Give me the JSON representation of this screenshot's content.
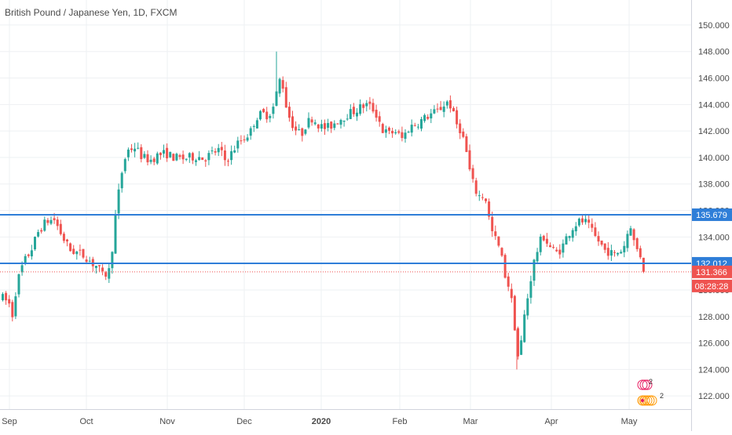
{
  "chart_title": "British Pound / Japanese Yen, 1D, FXCM",
  "colors": {
    "up": "#26a69a",
    "down": "#ef5350",
    "hline": "#2962ff",
    "line_blue": "#2f7ed8",
    "grid": "#eef0f3",
    "axis_text": "#4a4a4a",
    "background": "#ffffff"
  },
  "price_labels": {
    "upper_line": "135.679",
    "lower_line": "132.012",
    "last_price": "131.366",
    "countdown": "08:28:28"
  },
  "event_markers": {
    "upper_count": "2",
    "lower_count": "2"
  },
  "chart_data": {
    "type": "candlestick",
    "x_axis_labels": [
      "Sep",
      "Oct",
      "Nov",
      "Dec",
      "2020",
      "Feb",
      "Mar",
      "Apr",
      "May"
    ],
    "y_axis_ticks": [
      "122.000",
      "124.000",
      "126.000",
      "128.000",
      "130.000",
      "132.000",
      "134.000",
      "136.000",
      "138.000",
      "140.000",
      "142.000",
      "144.000",
      "146.000",
      "148.000",
      "150.000"
    ],
    "ylim": [
      121.3,
      151.0
    ],
    "grid": true,
    "horizontal_lines": [
      135.679,
      132.012
    ],
    "last_price": 131.366,
    "path": [
      [
        0,
        129.5
      ],
      [
        10,
        129.0
      ],
      [
        14,
        128.0
      ],
      [
        20,
        130.5
      ],
      [
        28,
        132.0
      ],
      [
        38,
        133.0
      ],
      [
        48,
        134.5
      ],
      [
        58,
        135.2
      ],
      [
        68,
        135.3
      ],
      [
        78,
        134.0
      ],
      [
        88,
        133.0
      ],
      [
        98,
        132.8
      ],
      [
        108,
        132.5
      ],
      [
        116,
        132.0
      ],
      [
        122,
        131.8
      ],
      [
        130,
        131.0
      ],
      [
        138,
        131.5
      ],
      [
        142,
        133.5
      ],
      [
        146,
        135.8
      ],
      [
        150,
        137.5
      ],
      [
        154,
        139.0
      ],
      [
        160,
        140.5
      ],
      [
        170,
        140.8
      ],
      [
        180,
        140.0
      ],
      [
        190,
        139.8
      ],
      [
        200,
        140.2
      ],
      [
        210,
        140.3
      ],
      [
        220,
        140.0
      ],
      [
        230,
        139.9
      ],
      [
        240,
        140.0
      ],
      [
        250,
        140.1
      ],
      [
        258,
        139.9
      ],
      [
        268,
        140.3
      ],
      [
        278,
        140.6
      ],
      [
        285,
        139.8
      ],
      [
        292,
        140.2
      ],
      [
        300,
        141.0
      ],
      [
        310,
        141.5
      ],
      [
        318,
        142.0
      ],
      [
        324,
        143.0
      ],
      [
        332,
        143.3
      ],
      [
        340,
        143.2
      ],
      [
        346,
        143.7
      ],
      [
        352,
        145.2
      ],
      [
        356,
        146.2
      ],
      [
        360,
        145.0
      ],
      [
        364,
        143.5
      ],
      [
        370,
        142.6
      ],
      [
        376,
        142.0
      ],
      [
        382,
        141.7
      ],
      [
        388,
        142.5
      ],
      [
        396,
        143.0
      ],
      [
        404,
        142.5
      ],
      [
        410,
        142.2
      ],
      [
        418,
        142.3
      ],
      [
        426,
        142.7
      ],
      [
        434,
        143.0
      ],
      [
        442,
        143.3
      ],
      [
        450,
        143.5
      ],
      [
        458,
        143.8
      ],
      [
        466,
        144.0
      ],
      [
        474,
        143.6
      ],
      [
        480,
        143.0
      ],
      [
        486,
        142.0
      ],
      [
        494,
        141.8
      ],
      [
        502,
        142.0
      ],
      [
        510,
        141.4
      ],
      [
        520,
        142.3
      ],
      [
        530,
        142.6
      ],
      [
        540,
        143.0
      ],
      [
        548,
        143.3
      ],
      [
        556,
        143.5
      ],
      [
        564,
        144.0
      ],
      [
        570,
        144.3
      ],
      [
        574,
        143.5
      ],
      [
        580,
        142.5
      ],
      [
        586,
        142.0
      ],
      [
        592,
        140.5
      ],
      [
        598,
        138.5
      ],
      [
        604,
        137.5
      ],
      [
        610,
        137.0
      ],
      [
        616,
        137.2
      ],
      [
        620,
        135.8
      ],
      [
        624,
        134.5
      ],
      [
        628,
        134.0
      ],
      [
        632,
        133.5
      ],
      [
        636,
        132.8
      ],
      [
        642,
        131.0
      ],
      [
        648,
        130.0
      ],
      [
        654,
        127.2
      ],
      [
        658,
        125.0
      ],
      [
        662,
        126.0
      ],
      [
        666,
        128.0
      ],
      [
        672,
        130.0
      ],
      [
        676,
        131.5
      ],
      [
        680,
        132.5
      ],
      [
        686,
        133.6
      ],
      [
        690,
        134.1
      ],
      [
        696,
        133.5
      ],
      [
        702,
        133.0
      ],
      [
        708,
        132.8
      ],
      [
        714,
        133.2
      ],
      [
        720,
        134.0
      ],
      [
        726,
        134.6
      ],
      [
        732,
        135.0
      ],
      [
        738,
        135.2
      ],
      [
        744,
        135.1
      ],
      [
        750,
        134.6
      ],
      [
        756,
        134.0
      ],
      [
        762,
        133.6
      ],
      [
        768,
        133.0
      ],
      [
        774,
        132.9
      ],
      [
        780,
        132.6
      ],
      [
        786,
        132.9
      ],
      [
        792,
        133.1
      ],
      [
        798,
        134.4
      ],
      [
        802,
        135.0
      ],
      [
        806,
        133.5
      ],
      [
        810,
        133.0
      ],
      [
        814,
        132.6
      ],
      [
        818,
        131.4
      ]
    ],
    "current_x": 818
  }
}
